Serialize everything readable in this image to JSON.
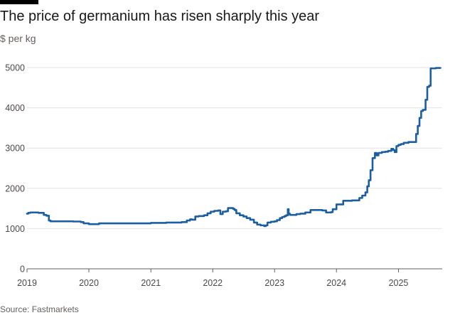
{
  "title": "The price of germanium has risen sharply this year",
  "subtitle": "$ per kg",
  "source": "Source: Fastmarkets",
  "colors": {
    "line": "#1b5ea2",
    "grid": "#e6e2df",
    "axis": "#66605c",
    "background": "#ffffff"
  },
  "chart_data": {
    "type": "line",
    "title": "The price of germanium has risen sharply this year",
    "ylabel": "$ per kg",
    "xlabel": "",
    "ylim": [
      0,
      5000
    ],
    "xlim": [
      "2019-01-01",
      "2025-09-15"
    ],
    "yticks": [
      0,
      1000,
      2000,
      3000,
      4000,
      5000
    ],
    "xticks": [
      "2019",
      "2020",
      "2021",
      "2022",
      "2023",
      "2024",
      "2025"
    ],
    "grid": true,
    "legend": "none",
    "series": [
      {
        "name": "",
        "points": [
          [
            "2019-01-01",
            1370
          ],
          [
            "2019-01-08",
            1390
          ],
          [
            "2019-01-20",
            1400
          ],
          [
            "2019-03-01",
            1400
          ],
          [
            "2019-03-10",
            1390
          ],
          [
            "2019-04-01",
            1390
          ],
          [
            "2019-04-10",
            1340
          ],
          [
            "2019-04-25",
            1320
          ],
          [
            "2019-05-10",
            1200
          ],
          [
            "2019-05-20",
            1180
          ],
          [
            "2019-07-01",
            1180
          ],
          [
            "2019-10-01",
            1175
          ],
          [
            "2019-11-15",
            1160
          ],
          [
            "2019-12-01",
            1130
          ],
          [
            "2020-01-01",
            1110
          ],
          [
            "2020-02-15",
            1110
          ],
          [
            "2020-03-01",
            1130
          ],
          [
            "2020-06-01",
            1130
          ],
          [
            "2020-09-01",
            1130
          ],
          [
            "2020-12-01",
            1130
          ],
          [
            "2021-01-01",
            1140
          ],
          [
            "2021-03-01",
            1140
          ],
          [
            "2021-04-01",
            1150
          ],
          [
            "2021-06-01",
            1150
          ],
          [
            "2021-07-01",
            1160
          ],
          [
            "2021-08-01",
            1200
          ],
          [
            "2021-08-20",
            1230
          ],
          [
            "2021-09-01",
            1220
          ],
          [
            "2021-09-20",
            1300
          ],
          [
            "2021-10-10",
            1310
          ],
          [
            "2021-11-01",
            1310
          ],
          [
            "2021-11-10",
            1330
          ],
          [
            "2021-12-01",
            1380
          ],
          [
            "2021-12-20",
            1420
          ],
          [
            "2022-01-10",
            1440
          ],
          [
            "2022-02-01",
            1450
          ],
          [
            "2022-02-15",
            1360
          ],
          [
            "2022-03-01",
            1420
          ],
          [
            "2022-03-20",
            1430
          ],
          [
            "2022-04-01",
            1510
          ],
          [
            "2022-05-01",
            1490
          ],
          [
            "2022-05-10",
            1460
          ],
          [
            "2022-05-20",
            1380
          ],
          [
            "2022-06-10",
            1330
          ],
          [
            "2022-07-01",
            1300
          ],
          [
            "2022-07-20",
            1260
          ],
          [
            "2022-08-10",
            1220
          ],
          [
            "2022-09-01",
            1150
          ],
          [
            "2022-09-20",
            1100
          ],
          [
            "2022-10-10",
            1080
          ],
          [
            "2022-11-01",
            1060
          ],
          [
            "2022-11-10",
            1080
          ],
          [
            "2022-11-20",
            1150
          ],
          [
            "2022-12-10",
            1170
          ],
          [
            "2023-01-01",
            1180
          ],
          [
            "2023-01-15",
            1210
          ],
          [
            "2023-02-01",
            1260
          ],
          [
            "2023-02-15",
            1290
          ],
          [
            "2023-03-01",
            1310
          ],
          [
            "2023-03-10",
            1330
          ],
          [
            "2023-03-20",
            1480
          ],
          [
            "2023-03-25",
            1370
          ],
          [
            "2023-04-01",
            1340
          ],
          [
            "2023-05-10",
            1360
          ],
          [
            "2023-06-01",
            1370
          ],
          [
            "2023-07-01",
            1400
          ],
          [
            "2023-08-01",
            1460
          ],
          [
            "2023-09-10",
            1460
          ],
          [
            "2023-10-10",
            1450
          ],
          [
            "2023-11-01",
            1400
          ],
          [
            "2023-11-20",
            1400
          ],
          [
            "2023-12-01",
            1410
          ],
          [
            "2023-12-10",
            1480
          ],
          [
            "2024-01-01",
            1600
          ],
          [
            "2024-01-20",
            1600
          ],
          [
            "2024-02-10",
            1690
          ],
          [
            "2024-04-01",
            1700
          ],
          [
            "2024-05-01",
            1700
          ],
          [
            "2024-05-15",
            1760
          ],
          [
            "2024-06-01",
            1820
          ],
          [
            "2024-06-20",
            1900
          ],
          [
            "2024-07-01",
            2050
          ],
          [
            "2024-07-10",
            2200
          ],
          [
            "2024-07-20",
            2450
          ],
          [
            "2024-08-01",
            2750
          ],
          [
            "2024-08-15",
            2880
          ],
          [
            "2024-08-25",
            2820
          ],
          [
            "2024-09-05",
            2880
          ],
          [
            "2024-09-25",
            2900
          ],
          [
            "2024-10-15",
            2910
          ],
          [
            "2024-11-01",
            2930
          ],
          [
            "2024-11-20",
            2980
          ],
          [
            "2024-12-01",
            2950
          ],
          [
            "2024-12-10",
            2900
          ],
          [
            "2024-12-20",
            3050
          ],
          [
            "2025-01-01",
            3080
          ],
          [
            "2025-01-15",
            3100
          ],
          [
            "2025-02-01",
            3130
          ],
          [
            "2025-03-01",
            3150
          ],
          [
            "2025-04-01",
            3150
          ],
          [
            "2025-04-15",
            3350
          ],
          [
            "2025-04-25",
            3550
          ],
          [
            "2025-05-05",
            3750
          ],
          [
            "2025-05-15",
            3920
          ],
          [
            "2025-05-25",
            3950
          ],
          [
            "2025-06-10",
            4200
          ],
          [
            "2025-06-20",
            4520
          ],
          [
            "2025-07-01",
            4550
          ],
          [
            "2025-07-10",
            4980
          ],
          [
            "2025-07-20",
            4980
          ],
          [
            "2025-08-10",
            4990
          ],
          [
            "2025-09-05",
            4990
          ]
        ]
      }
    ]
  }
}
